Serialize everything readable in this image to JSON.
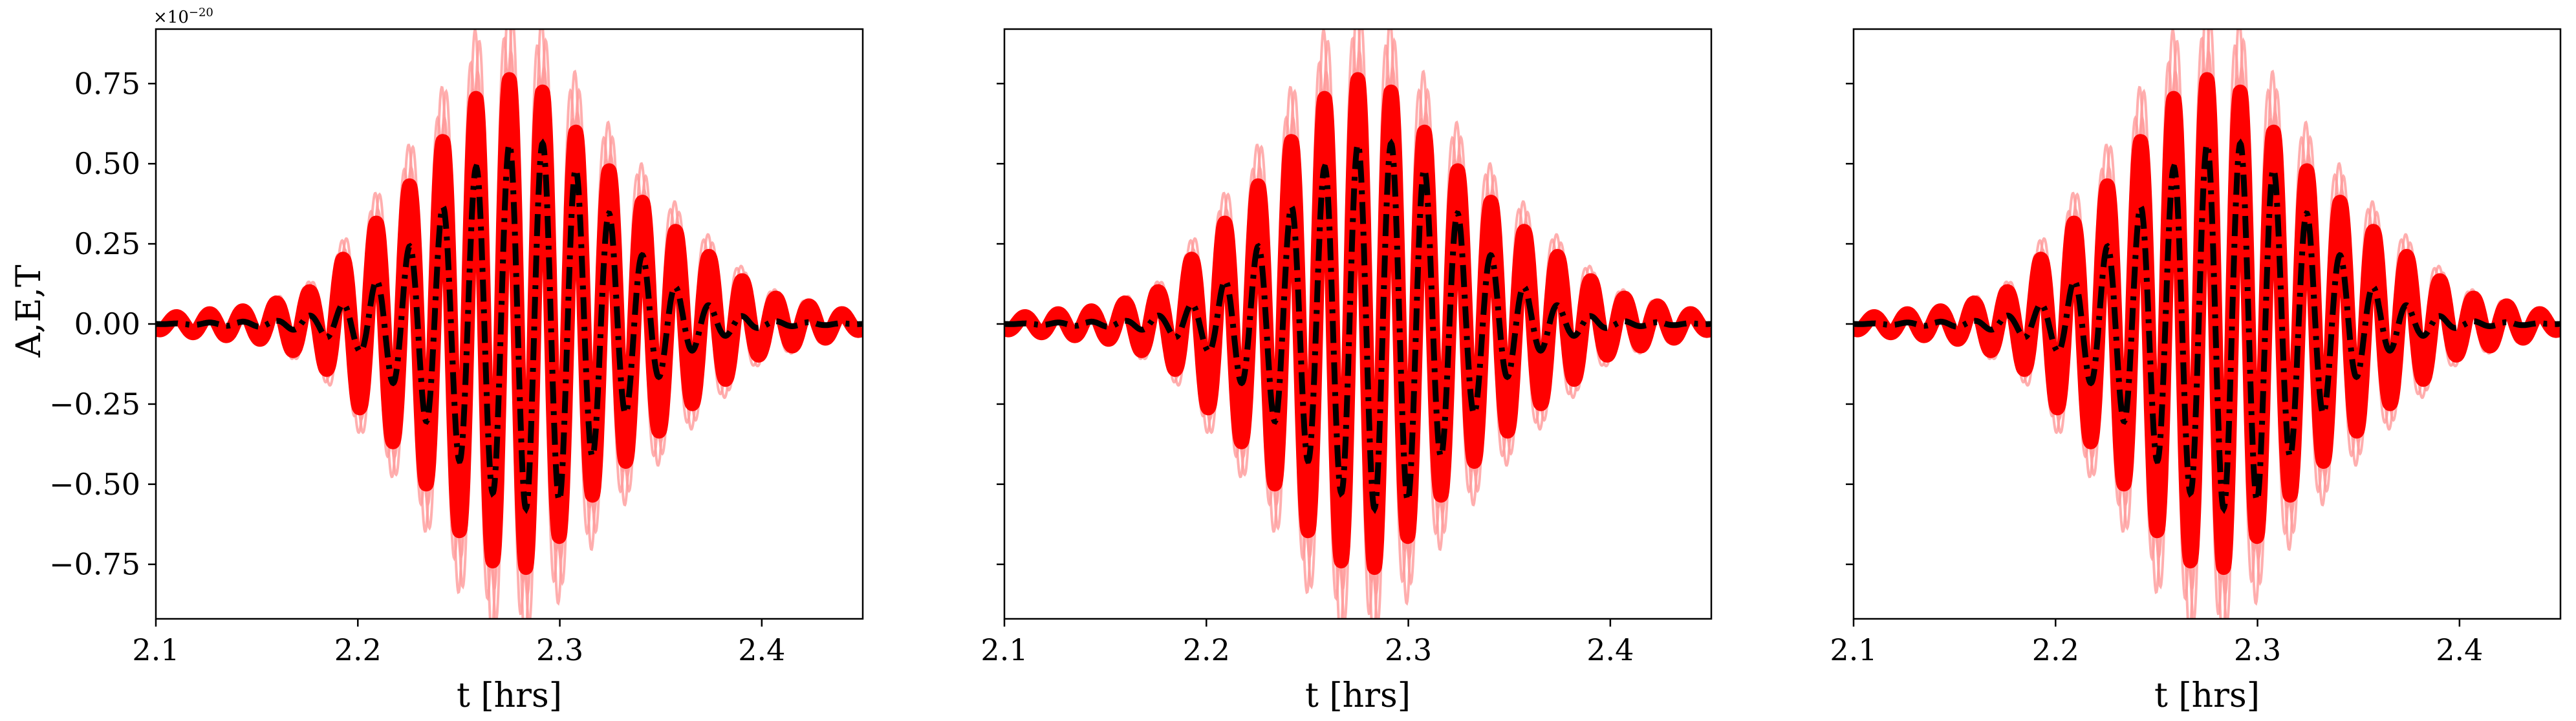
{
  "chart_data": {
    "type": "line",
    "shared_y": true,
    "ylabel": "A,E,T",
    "y_exponent_label": "×10",
    "y_exponent_power": "−20",
    "yticks": [
      -0.75,
      -0.5,
      -0.25,
      0.0,
      0.25,
      0.5,
      0.75
    ],
    "ytick_labels": [
      "−0.75",
      "−0.50",
      "−0.25",
      "0.00",
      "0.25",
      "0.50",
      "0.75"
    ],
    "ylim": [
      -0.92,
      0.92
    ],
    "xlim": [
      2.1,
      2.45
    ],
    "xticks": [
      2.1,
      2.2,
      2.3,
      2.4
    ],
    "xtick_labels": [
      "2.1",
      "2.2",
      "2.3",
      "2.4"
    ],
    "grid": false,
    "colors": {
      "posterior": "#ff0000",
      "posterior_faint": "#ff9a9a",
      "injection": "#000000"
    },
    "panels": [
      {
        "xlabel": "t [hrs]",
        "series": [
          {
            "role": "posterior-band",
            "x": [
              2.1,
              2.15,
              2.18,
              2.2,
              2.22,
              2.24,
              2.255,
              2.27,
              2.28,
              2.29,
              2.3,
              2.32,
              2.34,
              2.36,
              2.38,
              2.4,
              2.45
            ],
            "upper": [
              0.02,
              0.05,
              0.12,
              0.28,
              0.42,
              0.6,
              0.75,
              0.82,
              0.84,
              0.8,
              0.72,
              0.55,
              0.42,
              0.3,
              0.2,
              0.1,
              0.02
            ],
            "lower": [
              -0.02,
              -0.05,
              -0.12,
              -0.28,
              -0.42,
              -0.6,
              -0.75,
              -0.82,
              -0.84,
              -0.8,
              -0.72,
              -0.55,
              -0.42,
              -0.3,
              -0.2,
              -0.1,
              -0.02
            ]
          },
          {
            "role": "injection",
            "x": [
              2.1,
              2.16,
              2.18,
              2.2,
              2.22,
              2.24,
              2.26,
              2.28,
              2.3,
              2.32,
              2.34,
              2.36,
              2.38,
              2.4,
              2.45
            ],
            "amplitude": [
              0.0,
              0.01,
              0.03,
              0.08,
              0.2,
              0.35,
              0.5,
              0.58,
              0.55,
              0.38,
              0.22,
              0.1,
              0.04,
              0.01,
              0.0
            ]
          }
        ]
      },
      {
        "xlabel": "t [hrs]",
        "series": [
          {
            "role": "posterior-band",
            "x": [
              2.1,
              2.15,
              2.18,
              2.2,
              2.22,
              2.24,
              2.255,
              2.27,
              2.28,
              2.29,
              2.3,
              2.32,
              2.34,
              2.36,
              2.38,
              2.4,
              2.45
            ],
            "upper": [
              0.02,
              0.05,
              0.12,
              0.28,
              0.42,
              0.6,
              0.75,
              0.82,
              0.84,
              0.8,
              0.72,
              0.55,
              0.42,
              0.3,
              0.2,
              0.1,
              0.02
            ],
            "lower": [
              -0.02,
              -0.05,
              -0.12,
              -0.28,
              -0.42,
              -0.6,
              -0.75,
              -0.82,
              -0.84,
              -0.8,
              -0.72,
              -0.55,
              -0.42,
              -0.3,
              -0.2,
              -0.1,
              -0.02
            ]
          },
          {
            "role": "injection",
            "x": [
              2.1,
              2.16,
              2.18,
              2.2,
              2.22,
              2.24,
              2.26,
              2.28,
              2.3,
              2.32,
              2.34,
              2.36,
              2.38,
              2.4,
              2.45
            ],
            "amplitude": [
              0.0,
              0.01,
              0.03,
              0.08,
              0.2,
              0.35,
              0.5,
              0.58,
              0.55,
              0.38,
              0.22,
              0.1,
              0.04,
              0.01,
              0.0
            ]
          }
        ]
      },
      {
        "xlabel": "t [hrs]",
        "series": [
          {
            "role": "posterior-band",
            "x": [
              2.1,
              2.15,
              2.18,
              2.2,
              2.22,
              2.24,
              2.255,
              2.27,
              2.28,
              2.29,
              2.3,
              2.32,
              2.34,
              2.36,
              2.38,
              2.4,
              2.45
            ],
            "upper": [
              0.02,
              0.05,
              0.12,
              0.28,
              0.42,
              0.6,
              0.75,
              0.82,
              0.84,
              0.8,
              0.72,
              0.55,
              0.42,
              0.3,
              0.2,
              0.1,
              0.02
            ],
            "lower": [
              -0.02,
              -0.05,
              -0.12,
              -0.28,
              -0.42,
              -0.6,
              -0.75,
              -0.82,
              -0.84,
              -0.8,
              -0.72,
              -0.55,
              -0.42,
              -0.3,
              -0.2,
              -0.1,
              -0.02
            ]
          },
          {
            "role": "injection",
            "x": [
              2.1,
              2.16,
              2.18,
              2.2,
              2.22,
              2.24,
              2.26,
              2.28,
              2.3,
              2.32,
              2.34,
              2.36,
              2.38,
              2.4,
              2.45
            ],
            "amplitude": [
              0.0,
              0.01,
              0.03,
              0.08,
              0.2,
              0.35,
              0.5,
              0.58,
              0.55,
              0.38,
              0.22,
              0.1,
              0.04,
              0.01,
              0.0
            ]
          }
        ]
      }
    ]
  }
}
